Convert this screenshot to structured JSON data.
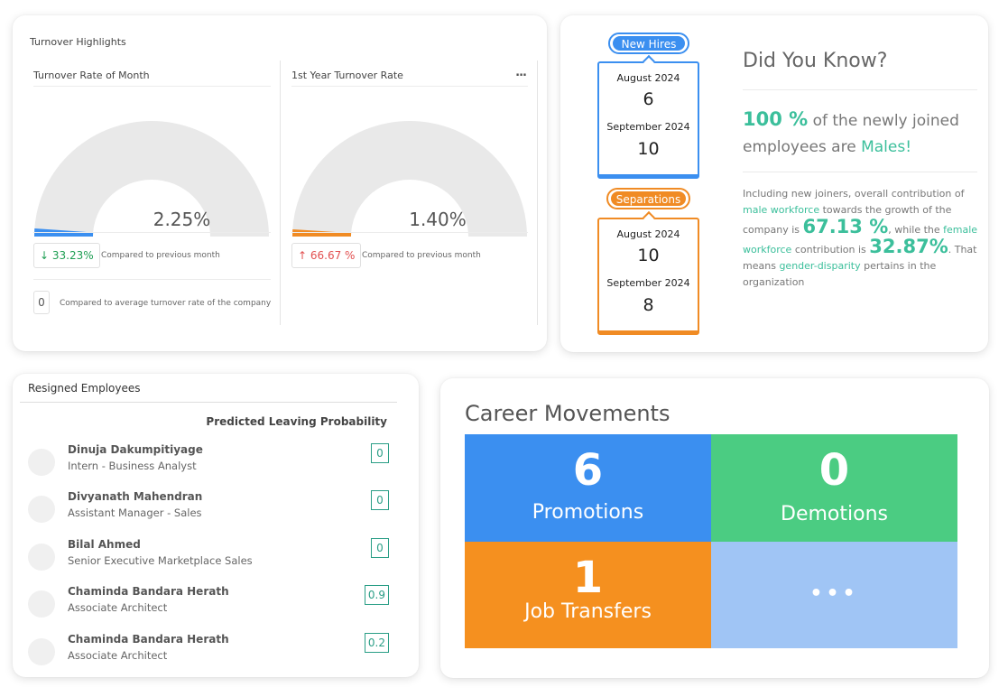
{
  "turnover": {
    "title": "Turnover Highlights",
    "monthly": {
      "title": "Turnover Rate of Month",
      "value": "2.25%",
      "gauge_fraction": 0.0225,
      "gauge_color": "#3b8ff0",
      "change": "33.23%",
      "change_arrow": "↓",
      "change_color": "#1e9e53",
      "change_note": "Compared to previous month",
      "avg_value": "0",
      "avg_note": "Compared to average turnover rate of the company"
    },
    "first_year": {
      "title": "1st Year Turnover Rate",
      "menu_icon": "...",
      "value": "1.40%",
      "gauge_fraction": 0.014,
      "gauge_color": "#f08b24",
      "change": "66.67 %",
      "change_arrow": "↑",
      "change_color": "#e25050",
      "change_note": "Compared to previous month"
    }
  },
  "hires": {
    "label": "New Hires",
    "color": "#3b8ff0",
    "rows": [
      {
        "month": "August 2024",
        "count": "6"
      },
      {
        "month": "September 2024",
        "count": "10"
      }
    ]
  },
  "separations": {
    "label": "Separations",
    "color": "#f08b24",
    "rows": [
      {
        "month": "August 2024",
        "count": "10"
      },
      {
        "month": "September 2024",
        "count": "8"
      }
    ]
  },
  "did_you_know": {
    "title": "Did You Know?",
    "pct": "100 %",
    "main_1": "of the newly joined employees are",
    "main_2": "Males!",
    "b1": "Including new joiners, overall contribution of",
    "b2": "male workforce",
    "b3": "towards the growth of the company is",
    "male_pct": "67.13 %",
    "b4": ", while the",
    "b5": "female workforce",
    "b6": "contribution is",
    "female_pct": "32.87%",
    "b7": ". That means",
    "b8": "gender-disparity",
    "b9": "pertains in the organization"
  },
  "resigned": {
    "title": "Resigned Employees",
    "column": "Predicted Leaving Probability",
    "employees": [
      {
        "name": "Dinuja Dakumpitiyage",
        "role": "Intern - Business Analyst",
        "prob": "0"
      },
      {
        "name": "Divyanath Mahendran",
        "role": "Assistant Manager - Sales",
        "prob": "0"
      },
      {
        "name": "Bilal Ahmed",
        "role": "Senior Executive Marketplace Sales",
        "prob": "0"
      },
      {
        "name": "Chaminda Bandara Herath",
        "role": "Associate Architect",
        "prob": "0.9"
      },
      {
        "name": "Chaminda Bandara Herath",
        "role": "Associate Architect",
        "prob": "0.2"
      }
    ]
  },
  "career": {
    "title": "Career Movements",
    "tiles": [
      {
        "count": "6",
        "label": "Promotions",
        "color": "#3b8ff0"
      },
      {
        "count": "0",
        "label": "Demotions",
        "color": "#4bcc82"
      },
      {
        "count": "1",
        "label": "Job Transfers",
        "color": "#f5901f"
      },
      {
        "more": "•••",
        "color": "#a0c5f5"
      }
    ]
  }
}
